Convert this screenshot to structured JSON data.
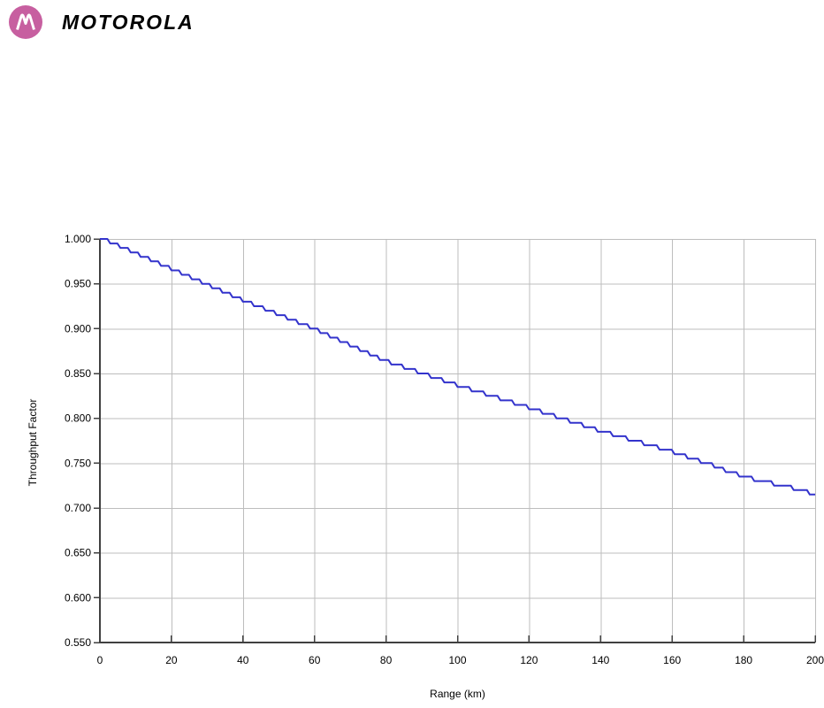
{
  "brand": {
    "wordmark": "MOTOROLA",
    "logo_color": "#C75FA0"
  },
  "colors": {
    "background": "#FFFFFF",
    "grid": "#BDBDBD",
    "axis": "#404040",
    "text": "#000000",
    "series_blue": "#3333CC"
  },
  "chart_data": {
    "type": "line",
    "title": "",
    "xlabel": "Range (km)",
    "ylabel": "Throughput Factor",
    "xlim": [
      0,
      200
    ],
    "ylim": [
      0.55,
      1.0
    ],
    "grid": true,
    "legend": "none",
    "x_ticks": [
      0,
      20,
      40,
      60,
      80,
      100,
      120,
      140,
      160,
      180,
      200
    ],
    "x_tick_labels": [
      "0",
      "20",
      "40",
      "60",
      "80",
      "100",
      "120",
      "140",
      "160",
      "180",
      "200"
    ],
    "y_ticks": [
      0.55,
      0.6,
      0.65,
      0.7,
      0.75,
      0.8,
      0.85,
      0.9,
      0.95,
      1.0
    ],
    "y_tick_labels": [
      "0.550",
      "0.600",
      "0.650",
      "0.700",
      "0.750",
      "0.800",
      "0.850",
      "0.900",
      "0.950",
      "1.000"
    ],
    "series": [
      {
        "name": "Throughput Factor",
        "color": "#3333CC",
        "style": "step",
        "x_end": 200,
        "steps": [
          [
            0,
            1.0
          ],
          [
            2.9,
            0.995
          ],
          [
            5.7,
            0.99
          ],
          [
            8.6,
            0.985
          ],
          [
            11.4,
            0.98
          ],
          [
            14.3,
            0.975
          ],
          [
            17.1,
            0.97
          ],
          [
            20,
            0.965
          ],
          [
            22.9,
            0.96
          ],
          [
            25.7,
            0.955
          ],
          [
            28.6,
            0.95
          ],
          [
            31.4,
            0.945
          ],
          [
            34.3,
            0.94
          ],
          [
            37.1,
            0.935
          ],
          [
            40,
            0.93
          ],
          [
            43.1,
            0.925
          ],
          [
            46.3,
            0.92
          ],
          [
            49.4,
            0.915
          ],
          [
            52.5,
            0.91
          ],
          [
            55.6,
            0.905
          ],
          [
            58.8,
            0.9
          ],
          [
            61.7,
            0.895
          ],
          [
            64.4,
            0.89
          ],
          [
            67.2,
            0.885
          ],
          [
            70,
            0.88
          ],
          [
            72.8,
            0.875
          ],
          [
            75.6,
            0.87
          ],
          [
            78.3,
            0.865
          ],
          [
            81.5,
            0.86
          ],
          [
            85.2,
            0.855
          ],
          [
            88.9,
            0.85
          ],
          [
            92.6,
            0.845
          ],
          [
            96.3,
            0.84
          ],
          [
            100,
            0.835
          ],
          [
            104,
            0.83
          ],
          [
            108,
            0.825
          ],
          [
            112,
            0.82
          ],
          [
            116,
            0.815
          ],
          [
            120,
            0.81
          ],
          [
            123.8,
            0.805
          ],
          [
            127.7,
            0.8
          ],
          [
            131.5,
            0.795
          ],
          [
            135.4,
            0.79
          ],
          [
            139.2,
            0.785
          ],
          [
            143.5,
            0.78
          ],
          [
            147.8,
            0.775
          ],
          [
            152.2,
            0.77
          ],
          [
            156.5,
            0.765
          ],
          [
            160.7,
            0.76
          ],
          [
            164.4,
            0.755
          ],
          [
            168.1,
            0.75
          ],
          [
            171.9,
            0.745
          ],
          [
            175,
            0.74
          ],
          [
            178.8,
            0.735
          ],
          [
            183,
            0.73
          ],
          [
            188.5,
            0.725
          ],
          [
            194,
            0.72
          ],
          [
            198.5,
            0.715
          ]
        ]
      }
    ]
  }
}
